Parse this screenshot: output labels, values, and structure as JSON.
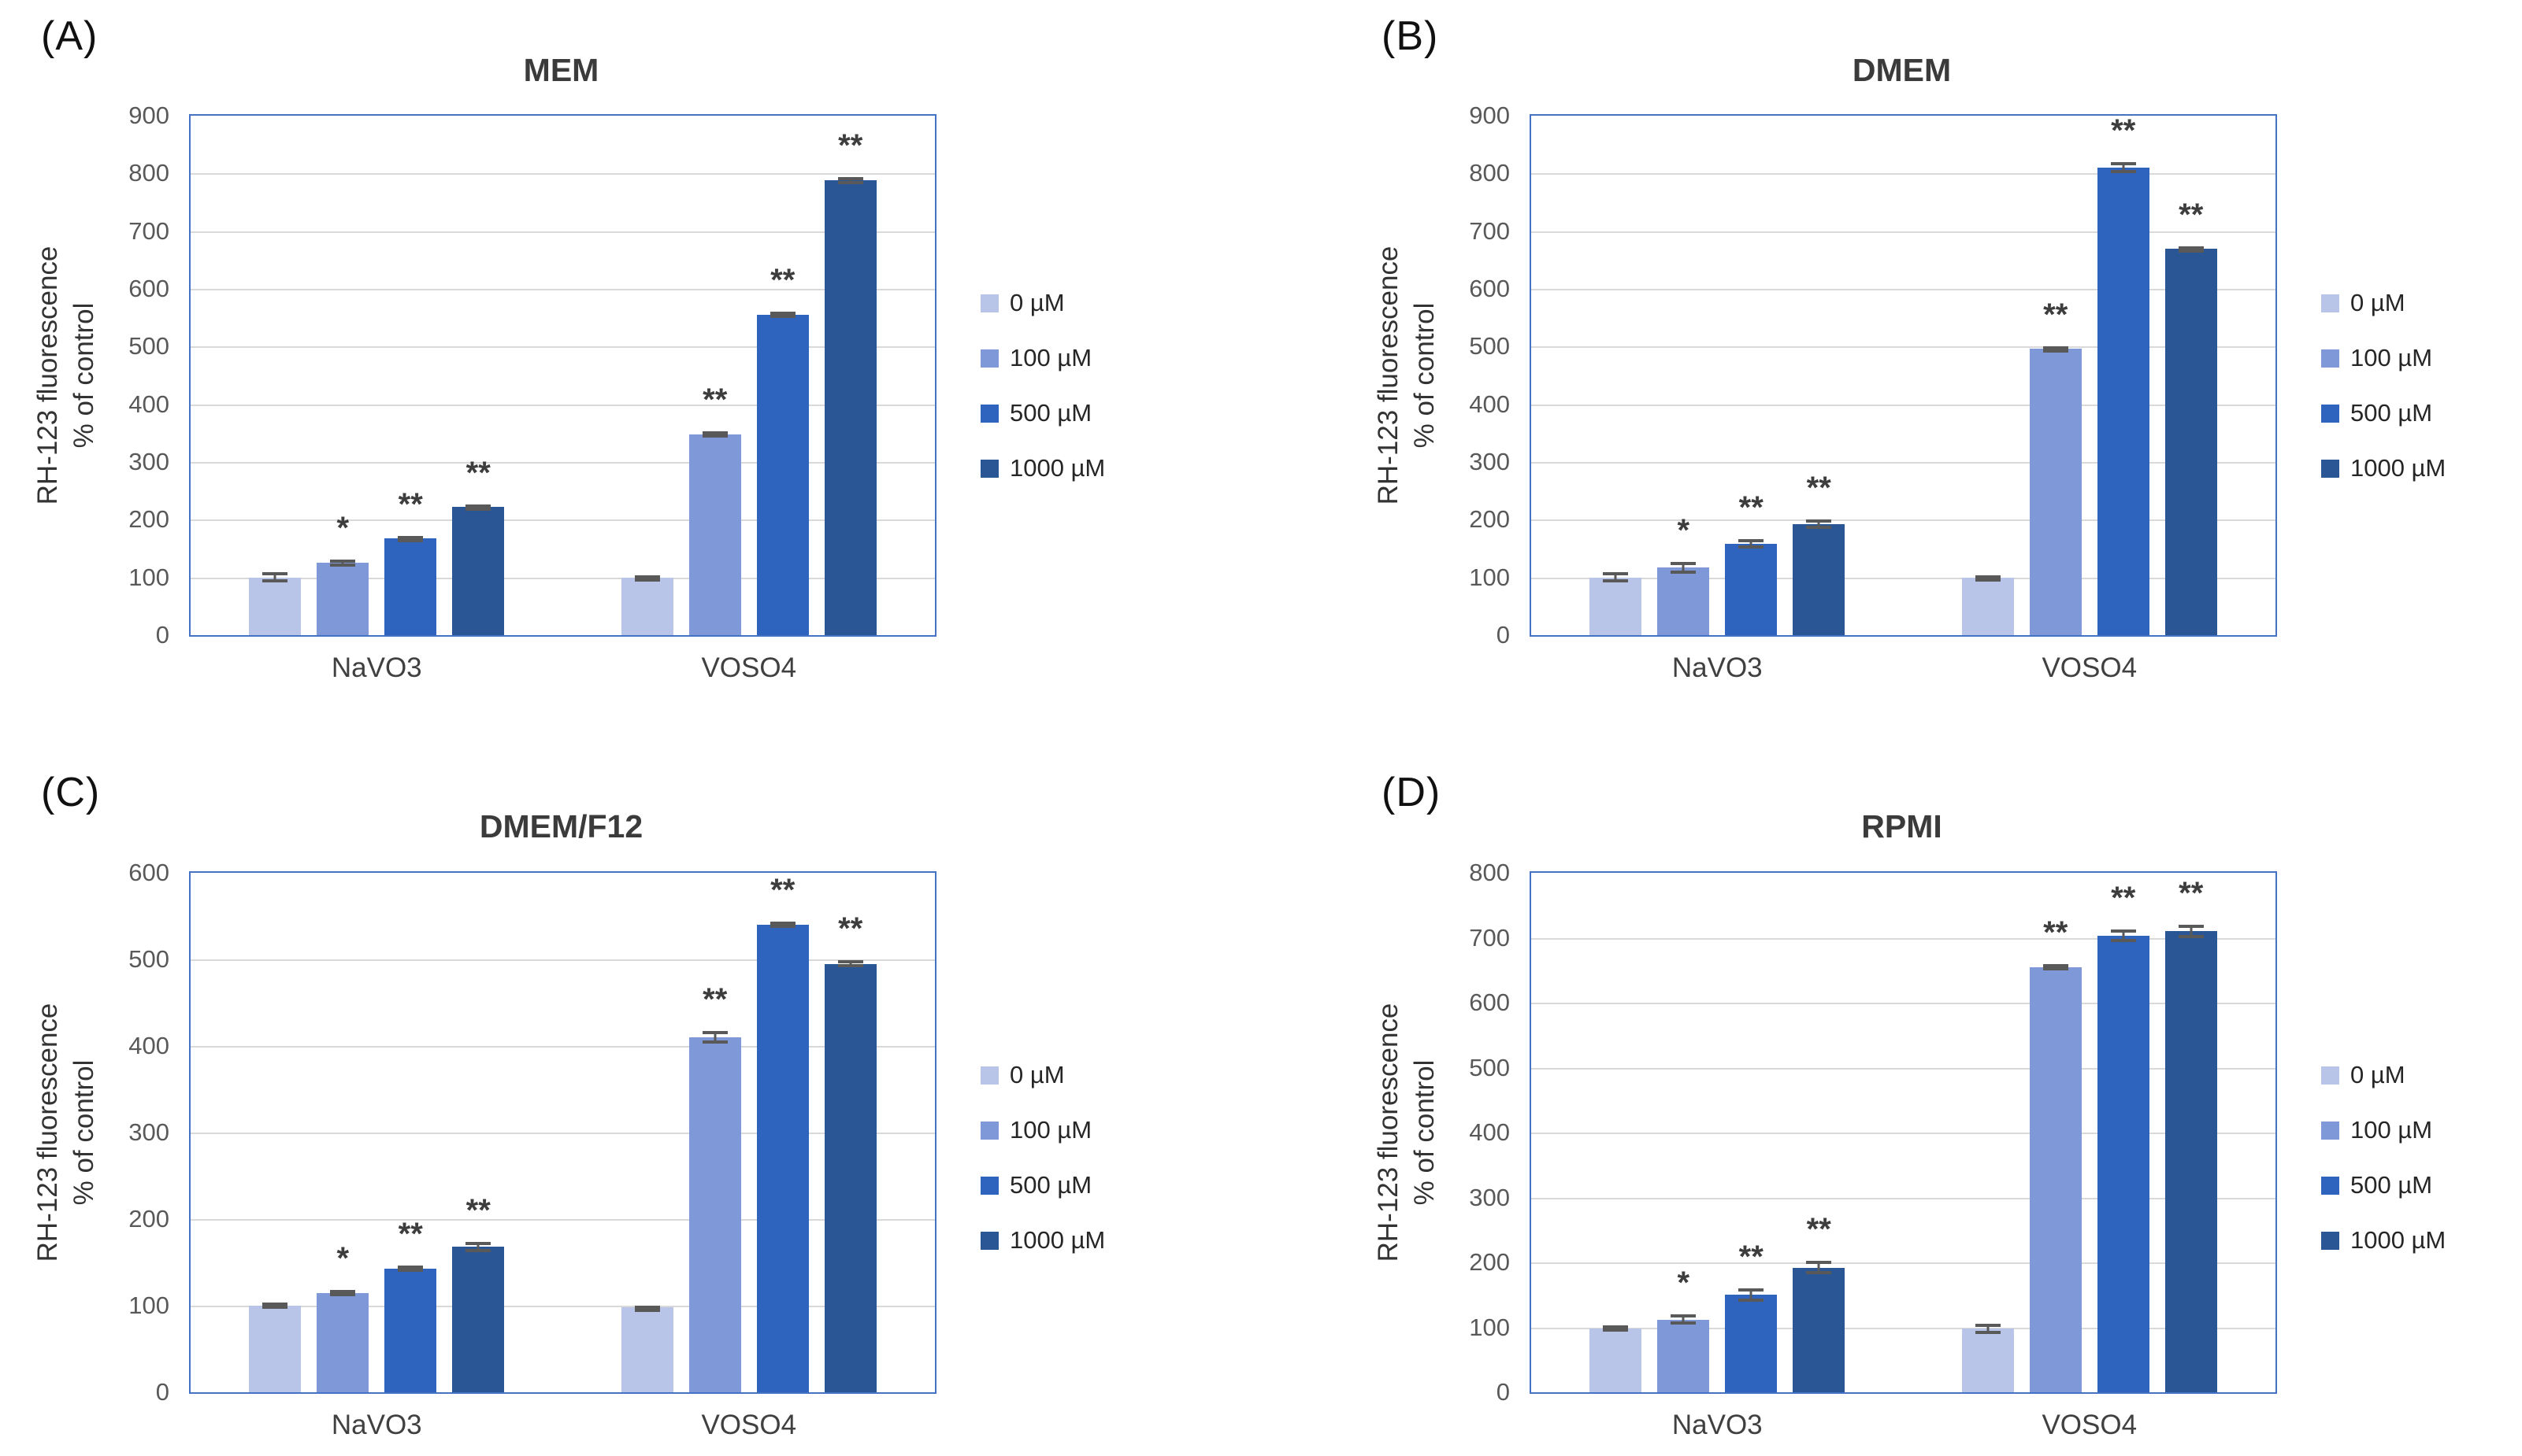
{
  "figure": {
    "ylabel_line1": "RH-123 fluorescence",
    "ylabel_line2": "% of control",
    "group_labels": [
      "NaVO3",
      "VOSO4"
    ],
    "legend": {
      "position": "right",
      "entries": [
        {
          "label": "0 µM",
          "color": "#b9c5e8"
        },
        {
          "label": "100 µM",
          "color": "#7e98d8"
        },
        {
          "label": "500 µM",
          "color": "#2f64be"
        },
        {
          "label": "1000 µM",
          "color": "#2b5695"
        }
      ]
    },
    "colors": {
      "plot_border": "#4472c4",
      "gridline": "#d9d9d9",
      "error_bar": "#595959",
      "tick_text": "#595959",
      "title_text": "#3b3b3b"
    }
  },
  "chart_data": [
    {
      "panel": "(A)",
      "type": "bar",
      "title": "MEM",
      "ylim": [
        0,
        900
      ],
      "ystep": 100,
      "grid": true,
      "categories": [
        "NaVO3",
        "VOSO4"
      ],
      "series": [
        {
          "name": "0 µM",
          "values": [
            100,
            100
          ],
          "errors": [
            9,
            4
          ],
          "sig": [
            "",
            ""
          ]
        },
        {
          "name": "100 µM",
          "values": [
            125,
            348
          ],
          "errors": [
            6,
            5
          ],
          "sig": [
            "*",
            "**"
          ]
        },
        {
          "name": "500 µM",
          "values": [
            168,
            555
          ],
          "errors": [
            4,
            5
          ],
          "sig": [
            "**",
            "**"
          ]
        },
        {
          "name": "1000 µM",
          "values": [
            222,
            788
          ],
          "errors": [
            5,
            6
          ],
          "sig": [
            "**",
            "**"
          ]
        }
      ]
    },
    {
      "panel": "(B)",
      "type": "bar",
      "title": "DMEM",
      "ylim": [
        0,
        900
      ],
      "ystep": 100,
      "grid": true,
      "categories": [
        "NaVO3",
        "VOSO4"
      ],
      "series": [
        {
          "name": "0 µM",
          "values": [
            100,
            100
          ],
          "errors": [
            9,
            4
          ],
          "sig": [
            "",
            ""
          ]
        },
        {
          "name": "100 µM",
          "values": [
            117,
            497
          ],
          "errors": [
            10,
            3
          ],
          "sig": [
            "*",
            "**"
          ]
        },
        {
          "name": "500 µM",
          "values": [
            158,
            810
          ],
          "errors": [
            8,
            10
          ],
          "sig": [
            "**",
            "**"
          ]
        },
        {
          "name": "1000 µM",
          "values": [
            192,
            670
          ],
          "errors": [
            8,
            3
          ],
          "sig": [
            "**",
            "**"
          ]
        }
      ]
    },
    {
      "panel": "(C)",
      "type": "bar",
      "title": "DMEM/F12",
      "ylim": [
        0,
        600
      ],
      "ystep": 100,
      "grid": true,
      "categories": [
        "NaVO3",
        "VOSO4"
      ],
      "series": [
        {
          "name": "0 µM",
          "values": [
            100,
            98
          ],
          "errors": [
            4,
            2
          ],
          "sig": [
            "",
            ""
          ]
        },
        {
          "name": "100 µM",
          "values": [
            115,
            410
          ],
          "errors": [
            3,
            7
          ],
          "sig": [
            "*",
            "**"
          ]
        },
        {
          "name": "500 µM",
          "values": [
            143,
            540
          ],
          "errors": [
            3,
            4
          ],
          "sig": [
            "**",
            "**"
          ]
        },
        {
          "name": "1000 µM",
          "values": [
            168,
            495
          ],
          "errors": [
            6,
            4
          ],
          "sig": [
            "**",
            "**"
          ]
        }
      ]
    },
    {
      "panel": "(D)",
      "type": "bar",
      "title": "RPMI",
      "ylim": [
        0,
        800
      ],
      "ystep": 100,
      "grid": true,
      "categories": [
        "NaVO3",
        "VOSO4"
      ],
      "series": [
        {
          "name": "0 µM",
          "values": [
            98,
            98
          ],
          "errors": [
            5,
            8
          ],
          "sig": [
            "",
            ""
          ]
        },
        {
          "name": "100 µM",
          "values": [
            112,
            655
          ],
          "errors": [
            8,
            4
          ],
          "sig": [
            "*",
            "**"
          ]
        },
        {
          "name": "500 µM",
          "values": [
            150,
            703
          ],
          "errors": [
            10,
            10
          ],
          "sig": [
            "**",
            "**"
          ]
        },
        {
          "name": "1000 µM",
          "values": [
            192,
            710
          ],
          "errors": [
            10,
            10
          ],
          "sig": [
            "**",
            "**"
          ]
        }
      ]
    }
  ]
}
